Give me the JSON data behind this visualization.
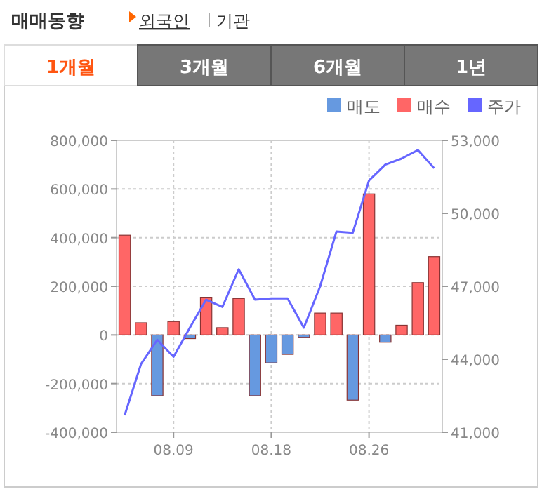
{
  "chart_data": {
    "type": "bar",
    "title": "매매동향",
    "annotations": [
      "외국인",
      "기관",
      "1개월",
      "3개월",
      "6개월",
      "1년"
    ],
    "categories": [
      null,
      null,
      null,
      "08.09",
      null,
      null,
      null,
      null,
      null,
      "08.18",
      null,
      null,
      null,
      null,
      null,
      "08.26",
      null,
      null,
      null,
      null
    ],
    "series": [
      {
        "name": "매도",
        "color": "#6699e0",
        "values": [
          null,
          null,
          -250000,
          null,
          -15000,
          null,
          null,
          null,
          -250000,
          -115000,
          -80000,
          -10000,
          null,
          null,
          -268000,
          null,
          -30000,
          null,
          null,
          null
        ]
      },
      {
        "name": "매수",
        "color": "#ff6666",
        "values": [
          410000,
          50000,
          null,
          55000,
          null,
          155000,
          30000,
          150000,
          null,
          null,
          null,
          null,
          90000,
          90000,
          null,
          580000,
          null,
          40000,
          215000,
          322000
        ]
      },
      {
        "name": "주가",
        "color": "#6666ff",
        "type": "line",
        "axis": "y2",
        "values": [
          41700,
          43800,
          44800,
          44100,
          45300,
          46450,
          46150,
          47700,
          46450,
          46500,
          46500,
          45300,
          47000,
          49250,
          49200,
          51350,
          52000,
          52250,
          52600,
          51850
        ]
      }
    ],
    "ylim": [
      -400000,
      800000
    ],
    "yticks": [
      {
        "value": -400000,
        "label": "-400,000"
      },
      {
        "value": -200000,
        "label": "-200,000"
      },
      0,
      {
        "value": 200000,
        "label": "200,000"
      },
      {
        "value": 400000,
        "label": "400,000"
      },
      {
        "value": 600000,
        "label": "600,000"
      },
      {
        "value": 800000,
        "label": "800,000"
      }
    ],
    "y2lim": [
      41000,
      53000
    ],
    "y2ticks": [
      {
        "value": 41000,
        "label": "41,000"
      },
      {
        "value": 44000,
        "label": "44,000"
      },
      {
        "value": 47000,
        "label": "47,000"
      },
      {
        "value": 50000,
        "label": "50,000"
      },
      {
        "value": 53000,
        "label": "53,000"
      }
    ],
    "grid": true,
    "legend": "top right"
  }
}
